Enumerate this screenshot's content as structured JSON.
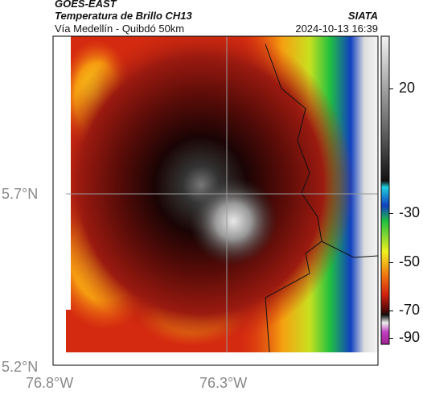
{
  "header": {
    "source": "GOES-EAST",
    "title": "Temperatura de Brillo CH13",
    "org": "SIATA",
    "subtitle": "Vía Medellín - Quibdó 50km",
    "timestamp": "2024-10-13 16:39"
  },
  "map": {
    "lat_labels": [
      "5.7°N",
      "5.2°N"
    ],
    "lon_labels": [
      "76.8°W",
      "76.3°W"
    ]
  },
  "colorbar": {
    "ticks": [
      20,
      -30,
      -50,
      -70,
      -90
    ]
  }
}
